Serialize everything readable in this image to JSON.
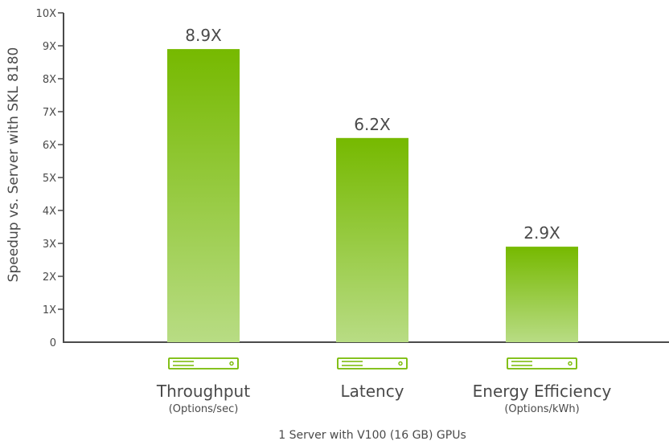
{
  "chart_data": {
    "type": "bar",
    "categories": [
      "Throughput",
      "Latency",
      "Energy Efficiency"
    ],
    "category_sublabels": [
      "(Options/sec)",
      "",
      "(Options/kWh)"
    ],
    "values": [
      8.9,
      6.2,
      2.9
    ],
    "data_labels": [
      "8.9X",
      "6.2X",
      "2.9X"
    ],
    "ylabel": "Speedup vs. Server with SKL 8180",
    "xlabel": "1 Server with V100 (16 GB) GPUs",
    "ylim": [
      0,
      10
    ],
    "yticks": [
      0,
      1,
      2,
      3,
      4,
      5,
      6,
      7,
      8,
      9,
      10
    ],
    "ytick_labels": [
      "0",
      "1X",
      "2X",
      "3X",
      "4X",
      "5X",
      "6X",
      "7X",
      "8X",
      "9X",
      "10X"
    ],
    "grid": false,
    "bar_color_top": "#76b900",
    "bar_color_bottom": "#b8dc84",
    "icon": "server-icon",
    "icon_color": "#76b900"
  }
}
